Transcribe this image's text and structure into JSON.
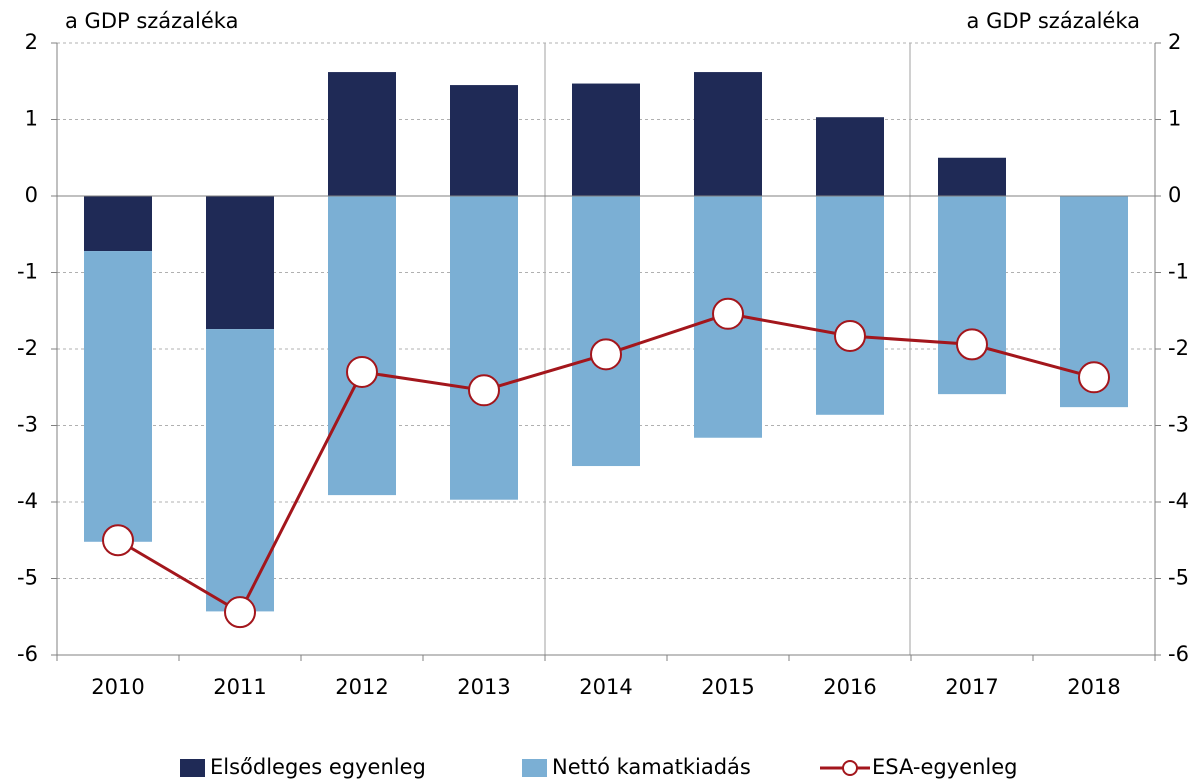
{
  "chart_data": {
    "type": "bar",
    "y_label_left": "a GDP százaléka",
    "y_label_right": "a GDP százaléka",
    "categories": [
      "2010",
      "2011",
      "2012",
      "2013",
      "2014",
      "2015",
      "2016",
      "2017",
      "2018"
    ],
    "series": [
      {
        "name": "Elsődleges egyenleg",
        "type": "bar",
        "color": "#1f2a56",
        "values": [
          -0.72,
          -1.74,
          1.62,
          1.45,
          1.47,
          1.62,
          1.03,
          0.5,
          0
        ]
      },
      {
        "name": "Nettó kamatkiadás",
        "type": "bar",
        "color": "#7bafd4",
        "values": [
          -3.8,
          -3.69,
          -3.91,
          -3.97,
          -3.53,
          -3.16,
          -2.86,
          -2.59,
          -2.76
        ]
      },
      {
        "name": "ESA-egyenleg",
        "type": "line",
        "color": "#a3161c",
        "values": [
          -4.5,
          -5.44,
          -2.3,
          -2.54,
          -2.07,
          -1.54,
          -1.83,
          -1.94,
          -2.37
        ]
      }
    ],
    "ylim": [
      -6,
      2
    ],
    "yticks": [
      -6,
      -5,
      -4,
      -3,
      -2,
      -1,
      0,
      1,
      2
    ],
    "y2lim": [
      -6,
      2
    ],
    "y2ticks": [
      -6,
      -5,
      -4,
      -3,
      -2,
      -1,
      0,
      1,
      2
    ],
    "grid": true,
    "stacked": true,
    "legend": "bottom"
  }
}
